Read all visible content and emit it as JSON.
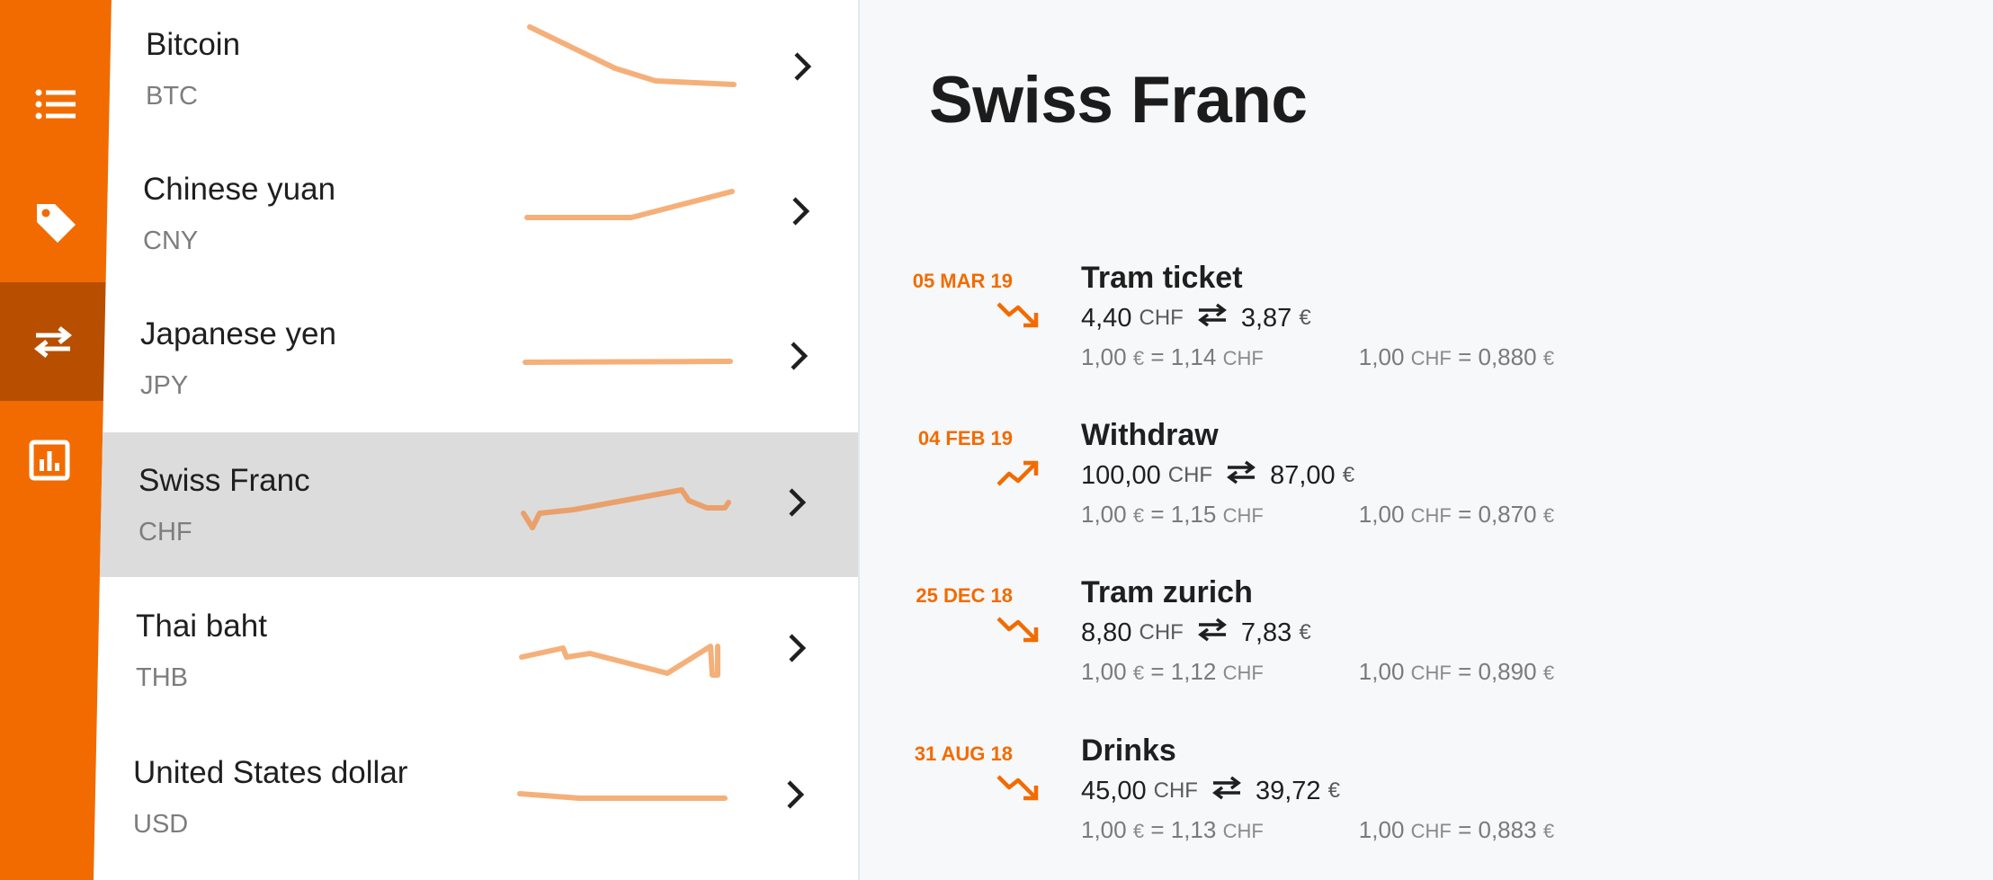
{
  "sidebar": {
    "items": [
      {
        "icon": "dashboard-icon"
      },
      {
        "icon": "list-icon"
      },
      {
        "icon": "tag-icon"
      },
      {
        "icon": "swap-icon",
        "active": true
      },
      {
        "icon": "chart-icon"
      }
    ]
  },
  "currencies": [
    {
      "name": "Bitcoin",
      "code": "BTC"
    },
    {
      "name": "Chinese yuan",
      "code": "CNY"
    },
    {
      "name": "Japanese yen",
      "code": "JPY"
    },
    {
      "name": "Swiss Franc",
      "code": "CHF",
      "selected": true
    },
    {
      "name": "Thai baht",
      "code": "THB"
    },
    {
      "name": "United States dollar",
      "code": "USD"
    }
  ],
  "detail": {
    "title": "Swiss Franc",
    "transactions": [
      {
        "date": "05 MAR 19",
        "trend": "down",
        "name": "Tram ticket",
        "amount": "4,40",
        "amount_unit": "CHF",
        "converted": "3,87",
        "converted_unit": "€",
        "rate1_a": "1,00",
        "rate1_a_unit": "€",
        "rate1_b": "1,14",
        "rate1_b_unit": "CHF",
        "rate2_a": "1,00",
        "rate2_a_unit": "CHF",
        "rate2_b": "0,880",
        "rate2_b_unit": "€"
      },
      {
        "date": "04 FEB 19",
        "trend": "up",
        "name": "Withdraw",
        "amount": "100,00",
        "amount_unit": "CHF",
        "converted": "87,00",
        "converted_unit": "€",
        "rate1_a": "1,00",
        "rate1_a_unit": "€",
        "rate1_b": "1,15",
        "rate1_b_unit": "CHF",
        "rate2_a": "1,00",
        "rate2_a_unit": "CHF",
        "rate2_b": "0,870",
        "rate2_b_unit": "€"
      },
      {
        "date": "25 DEC 18",
        "trend": "down",
        "name": "Tram zurich",
        "amount": "8,80",
        "amount_unit": "CHF",
        "converted": "7,83",
        "converted_unit": "€",
        "rate1_a": "1,00",
        "rate1_a_unit": "€",
        "rate1_b": "1,12",
        "rate1_b_unit": "CHF",
        "rate2_a": "1,00",
        "rate2_a_unit": "CHF",
        "rate2_b": "0,890",
        "rate2_b_unit": "€"
      },
      {
        "date": "31 AUG 18",
        "trend": "down",
        "name": "Drinks",
        "amount": "45,00",
        "amount_unit": "CHF",
        "converted": "39,72",
        "converted_unit": "€",
        "rate1_a": "1,00",
        "rate1_a_unit": "€",
        "rate1_b": "1,13",
        "rate1_b_unit": "CHF",
        "rate2_a": "1,00",
        "rate2_a_unit": "CHF",
        "rate2_b": "0,883",
        "rate2_b_unit": "€"
      }
    ]
  },
  "colors": {
    "accent": "#f26b00",
    "accent_dark": "#b84f00",
    "spark": "#f5b07a"
  }
}
